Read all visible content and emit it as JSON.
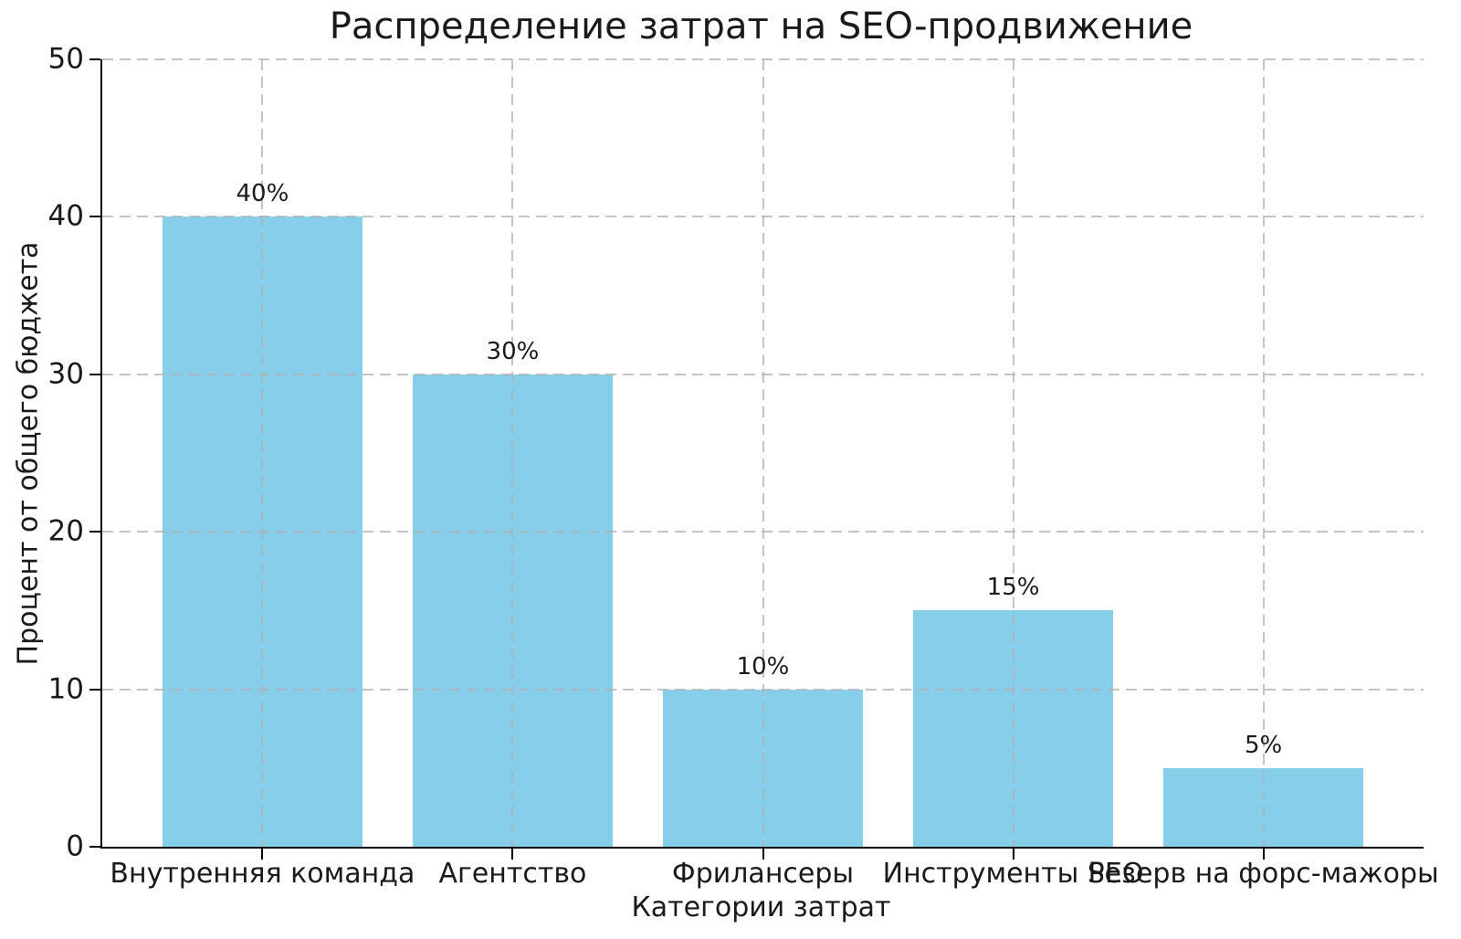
{
  "chart_data": {
    "type": "bar",
    "title": "Распределение затрат на SEO-продвижение",
    "xlabel": "Категории затрат",
    "ylabel": "Процент от общего бюджета",
    "categories": [
      "Внутренняя команда",
      "Агентство",
      "Фрилансеры",
      "Инструменты SEO",
      "Резерв на форс-мажоры"
    ],
    "values": [
      40,
      30,
      10,
      15,
      5
    ],
    "bar_labels": [
      "40%",
      "30%",
      "10%",
      "15%",
      "5%"
    ],
    "yticks": [
      0,
      10,
      20,
      30,
      40,
      50
    ],
    "ylim": [
      0,
      50
    ],
    "grid": "dashed",
    "legend": "none",
    "colors": {
      "bar": "#87CEEB",
      "grid": "#b0b0b0",
      "axis": "#000000",
      "text": "#1a1a1a",
      "background": "#ffffff"
    }
  }
}
